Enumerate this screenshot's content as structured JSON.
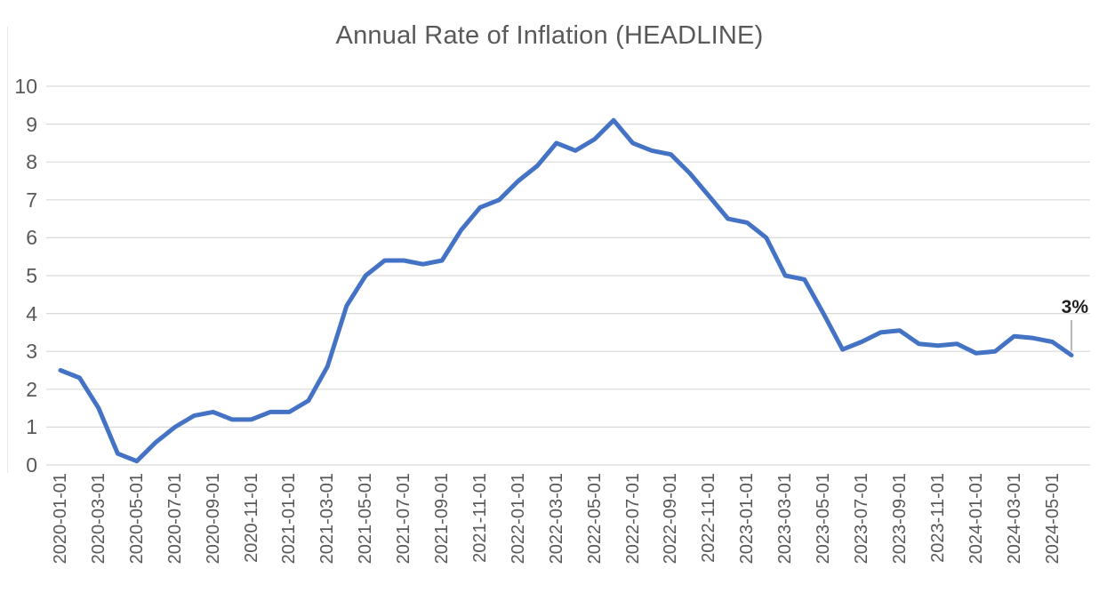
{
  "chart_data": {
    "type": "line",
    "title": "Annual Rate of Inflation (HEADLINE)",
    "series_name": "Annual Rate of Inflation (HEADLINE)",
    "x": [
      "2020-01-01",
      "2020-02-01",
      "2020-03-01",
      "2020-04-01",
      "2020-05-01",
      "2020-06-01",
      "2020-07-01",
      "2020-08-01",
      "2020-09-01",
      "2020-10-01",
      "2020-11-01",
      "2020-12-01",
      "2021-01-01",
      "2021-02-01",
      "2021-03-01",
      "2021-04-01",
      "2021-05-01",
      "2021-06-01",
      "2021-07-01",
      "2021-08-01",
      "2021-09-01",
      "2021-10-01",
      "2021-11-01",
      "2021-12-01",
      "2022-01-01",
      "2022-02-01",
      "2022-03-01",
      "2022-04-01",
      "2022-05-01",
      "2022-06-01",
      "2022-07-01",
      "2022-08-01",
      "2022-09-01",
      "2022-10-01",
      "2022-11-01",
      "2022-12-01",
      "2023-01-01",
      "2023-02-01",
      "2023-03-01",
      "2023-04-01",
      "2023-05-01",
      "2023-06-01",
      "2023-07-01",
      "2023-08-01",
      "2023-09-01",
      "2023-10-01",
      "2023-11-01",
      "2023-12-01",
      "2024-01-01",
      "2024-02-01",
      "2024-03-01",
      "2024-04-01",
      "2024-05-01",
      "2024-06-01"
    ],
    "values": [
      2.5,
      2.3,
      1.5,
      0.3,
      0.1,
      0.6,
      1.0,
      1.3,
      1.4,
      1.2,
      1.2,
      1.4,
      1.4,
      1.7,
      2.6,
      4.2,
      5.0,
      5.4,
      5.4,
      5.3,
      5.4,
      6.2,
      6.8,
      7.0,
      7.5,
      7.9,
      8.5,
      8.3,
      8.6,
      9.1,
      8.5,
      8.3,
      8.2,
      7.7,
      7.1,
      6.5,
      6.4,
      6.0,
      5.0,
      4.9,
      4.0,
      3.05,
      3.25,
      3.5,
      3.55,
      3.2,
      3.15,
      3.2,
      2.95,
      3.0,
      3.4,
      3.35,
      3.25,
      2.9
    ],
    "xlabel": "",
    "ylabel": "",
    "ylim": [
      0,
      10
    ],
    "y_tick_step": 1,
    "y_tick_labels": [
      "0",
      "1",
      "2",
      "3",
      "4",
      "5",
      "6",
      "7",
      "8",
      "9",
      "10"
    ],
    "x_tick_labels": [
      "2020-01-01",
      "2020-03-01",
      "2020-05-01",
      "2020-07-01",
      "2020-09-01",
      "2020-11-01",
      "2021-01-01",
      "2021-03-01",
      "2021-05-01",
      "2021-07-01",
      "2021-09-01",
      "2021-11-01",
      "2022-01-01",
      "2022-03-01",
      "2022-05-01",
      "2022-07-01",
      "2022-09-01",
      "2022-11-01",
      "2023-01-01",
      "2023-03-01",
      "2023-05-01",
      "2023-07-01",
      "2023-09-01",
      "2023-11-01",
      "2024-01-01",
      "2024-03-01",
      "2024-05-01"
    ],
    "x_tick_every_n_points": 2,
    "grid": "horizontal",
    "legend": "none",
    "annotation": {
      "text": "3%",
      "target_x": "2024-06-01",
      "target_value": 2.9
    },
    "colors": {
      "line": "#4472C4",
      "gridline": "#d9d9d9",
      "axis_text": "#595959",
      "title_text": "#595959",
      "annotation_text": "#1f1f1f",
      "leader_line": "#a0a0a0",
      "background": "#ffffff"
    }
  }
}
